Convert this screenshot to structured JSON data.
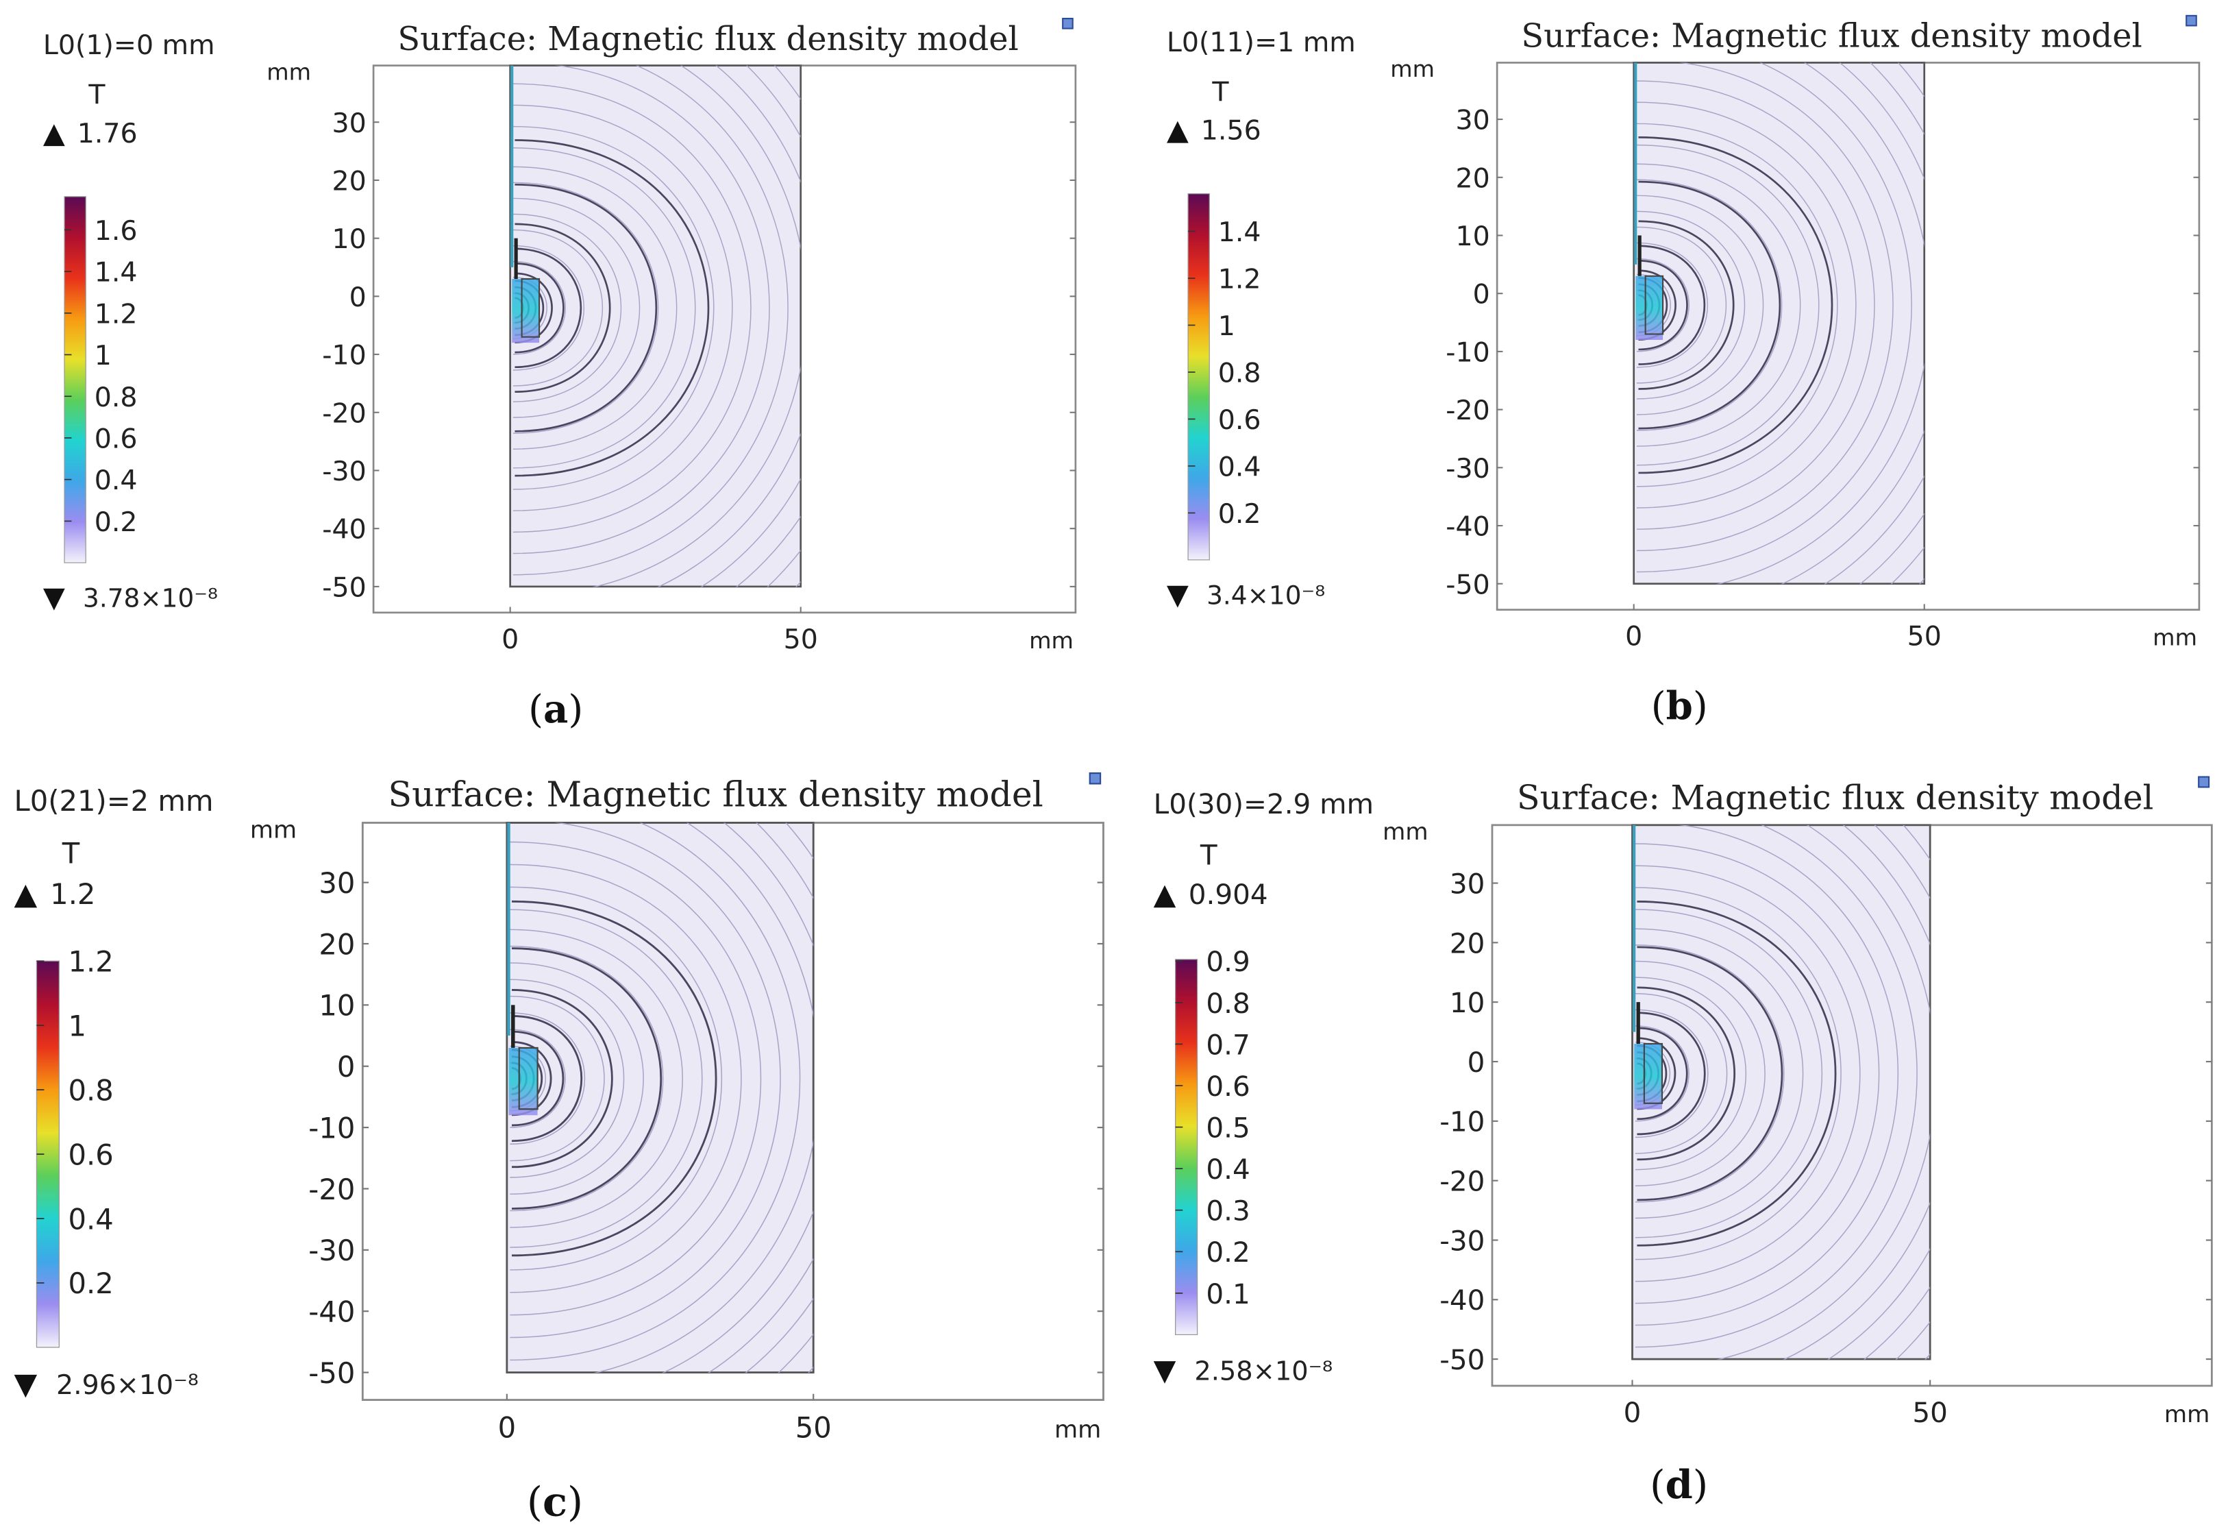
{
  "chart_data": [
    {
      "type": "heatmap",
      "panel_label": "a",
      "title": "Surface: Magnetic flux density model",
      "parameter": "L0(1)=0 mm",
      "colorbar": {
        "unit": "T",
        "max": "1.76",
        "min": "3.78×10⁻⁸",
        "max_value": 1.76,
        "ticks": [
          "0.2",
          "0.4",
          "0.6",
          "0.8",
          "1",
          "1.2",
          "1.4",
          "1.6"
        ]
      },
      "xlabel": "mm",
      "ylabel": "mm",
      "xticks": [
        "0",
        "50"
      ],
      "yticks": [
        "30",
        "20",
        "10",
        "0",
        "-10",
        "-20",
        "-30",
        "-40",
        "-50"
      ],
      "xlim": [
        -23.5,
        97
      ],
      "ylim": [
        -54,
        39.8
      ],
      "contour_lines": true
    },
    {
      "type": "heatmap",
      "panel_label": "b",
      "title": "Surface: Magnetic flux density model",
      "parameter": "L0(11)=1 mm",
      "colorbar": {
        "unit": "T",
        "max": "1.56",
        "min": "3.4×10⁻⁸",
        "max_value": 1.56,
        "ticks": [
          "0.2",
          "0.4",
          "0.6",
          "0.8",
          "1",
          "1.2",
          "1.4"
        ]
      },
      "xlabel": "mm",
      "ylabel": "mm",
      "xticks": [
        "0",
        "50"
      ],
      "yticks": [
        "30",
        "20",
        "10",
        "0",
        "-10",
        "-20",
        "-30",
        "-40",
        "-50"
      ],
      "xlim": [
        -23.5,
        97
      ],
      "ylim": [
        -54,
        39.8
      ],
      "contour_lines": true
    },
    {
      "type": "heatmap",
      "panel_label": "c",
      "title": "Surface: Magnetic flux density model",
      "parameter": "L0(21)=2 mm",
      "colorbar": {
        "unit": "T",
        "max": "1.2",
        "min": "2.96×10⁻⁸",
        "max_value": 1.2,
        "ticks": [
          "0.2",
          "0.4",
          "0.6",
          "0.8",
          "1",
          "1.2"
        ]
      },
      "xlabel": "mm",
      "ylabel": "mm",
      "xticks": [
        "0",
        "50"
      ],
      "yticks": [
        "30",
        "20",
        "10",
        "0",
        "-10",
        "-20",
        "-30",
        "-40",
        "-50"
      ],
      "xlim": [
        -23.5,
        97
      ],
      "ylim": [
        -54,
        39.8
      ],
      "contour_lines": true
    },
    {
      "type": "heatmap",
      "panel_label": "d",
      "title": "Surface: Magnetic flux density model",
      "parameter": "L0(30)=2.9 mm",
      "colorbar": {
        "unit": "T",
        "max": "0.904",
        "min": "2.58×10⁻⁸",
        "max_value": 0.904,
        "ticks": [
          "0.1",
          "0.2",
          "0.3",
          "0.4",
          "0.5",
          "0.6",
          "0.7",
          "0.8",
          "0.9"
        ]
      },
      "xlabel": "mm",
      "ylabel": "mm",
      "xticks": [
        "0",
        "50"
      ],
      "yticks": [
        "30",
        "20",
        "10",
        "0",
        "-10",
        "-20",
        "-30",
        "-40",
        "-50"
      ],
      "xlim": [
        -23.5,
        97
      ],
      "ylim": [
        -54,
        39.8
      ],
      "contour_lines": true
    }
  ],
  "colors": {
    "domain_fill": "#ebe9f5",
    "contour": "#4a4660",
    "frame": "#8a8a8a",
    "colormap": [
      "#f4f2fb",
      "#9b8df0",
      "#3fa7e8",
      "#22d3d0",
      "#5ccf5a",
      "#e8e02a",
      "#f79a12",
      "#e8321b",
      "#b0102e",
      "#5a0a55"
    ]
  }
}
